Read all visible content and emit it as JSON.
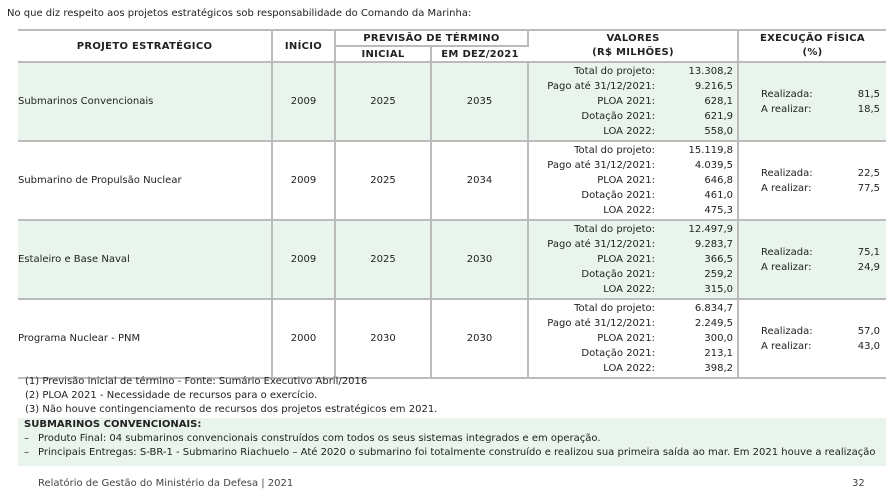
{
  "intro": "No que diz respeito aos projetos estratégicos sob responsabilidade do Comando da Marinha:",
  "headers": {
    "project": "PROJETO ESTRATÉGICO",
    "start": "INÍCIO",
    "end_group": "PREVISÃO DE TÉRMINO",
    "end_initial": "INICIAL",
    "end_dec": "EM DEZ/2021",
    "values_l1": "VALORES",
    "values_l2": "(R$ MILHÕES)",
    "exec_l1": "EXECUÇÃO FÍSICA",
    "exec_l2": "(%)"
  },
  "value_labels": [
    "Total do projeto:",
    "Pago até 31/12/2021:",
    "PLOA 2021:",
    "Dotação 2021:",
    "LOA 2022:"
  ],
  "exec_labels": [
    "Realizada:",
    "A realizar:"
  ],
  "projects": [
    {
      "name": "Submarinos Convencionais",
      "start": "2009",
      "initial": "2025",
      "dec": "2035",
      "values": [
        "13.308,2",
        "9.216,5",
        "628,1",
        "621,9",
        "558,0"
      ],
      "exec": [
        "81,5",
        "18,5"
      ]
    },
    {
      "name": "Submarino de Propulsão Nuclear",
      "start": "2009",
      "initial": "2025",
      "dec": "2034",
      "values": [
        "15.119,8",
        "4.039,5",
        "646,8",
        "461,0",
        "475,3"
      ],
      "exec": [
        "22,5",
        "77,5"
      ]
    },
    {
      "name": "Estaleiro e Base Naval",
      "start": "2009",
      "initial": "2025",
      "dec": "2030",
      "values": [
        "12.497,9",
        "9.283,7",
        "366,5",
        "259,2",
        "315,0"
      ],
      "exec": [
        "75,1",
        "24,9"
      ]
    },
    {
      "name": "Programa Nuclear - PNM",
      "start": "2000",
      "initial": "2030",
      "dec": "2030",
      "values": [
        "6.834,7",
        "2.249,5",
        "300,0",
        "213,1",
        "398,2"
      ],
      "exec": [
        "57,0",
        "43,0"
      ]
    }
  ],
  "notes": [
    "(1) Previsão inicial de término - Fonte: Sumário Executivo Abril/2016",
    "(2) PLOA 2021 - Necessidade de recursos para o exercício.",
    "(3) Não houve contingenciamento de recursos dos projetos estratégicos em 2021."
  ],
  "box": {
    "title": "SUBMARINOS CONVENCIONAIS:",
    "dash": "–",
    "items": [
      "Produto Final: 04 submarinos convencionais construídos com todos os seus sistemas integrados e em operação.",
      "Principais Entregas: S-BR-1 - Submarino Riachuelo – Até 2020 o submarino foi totalmente construído e realizou sua primeira saída ao mar. Em 2021 houve a realização"
    ]
  },
  "footer": "Relatório de Gestão do Ministério da Defesa | 2021",
  "page_number": "32"
}
